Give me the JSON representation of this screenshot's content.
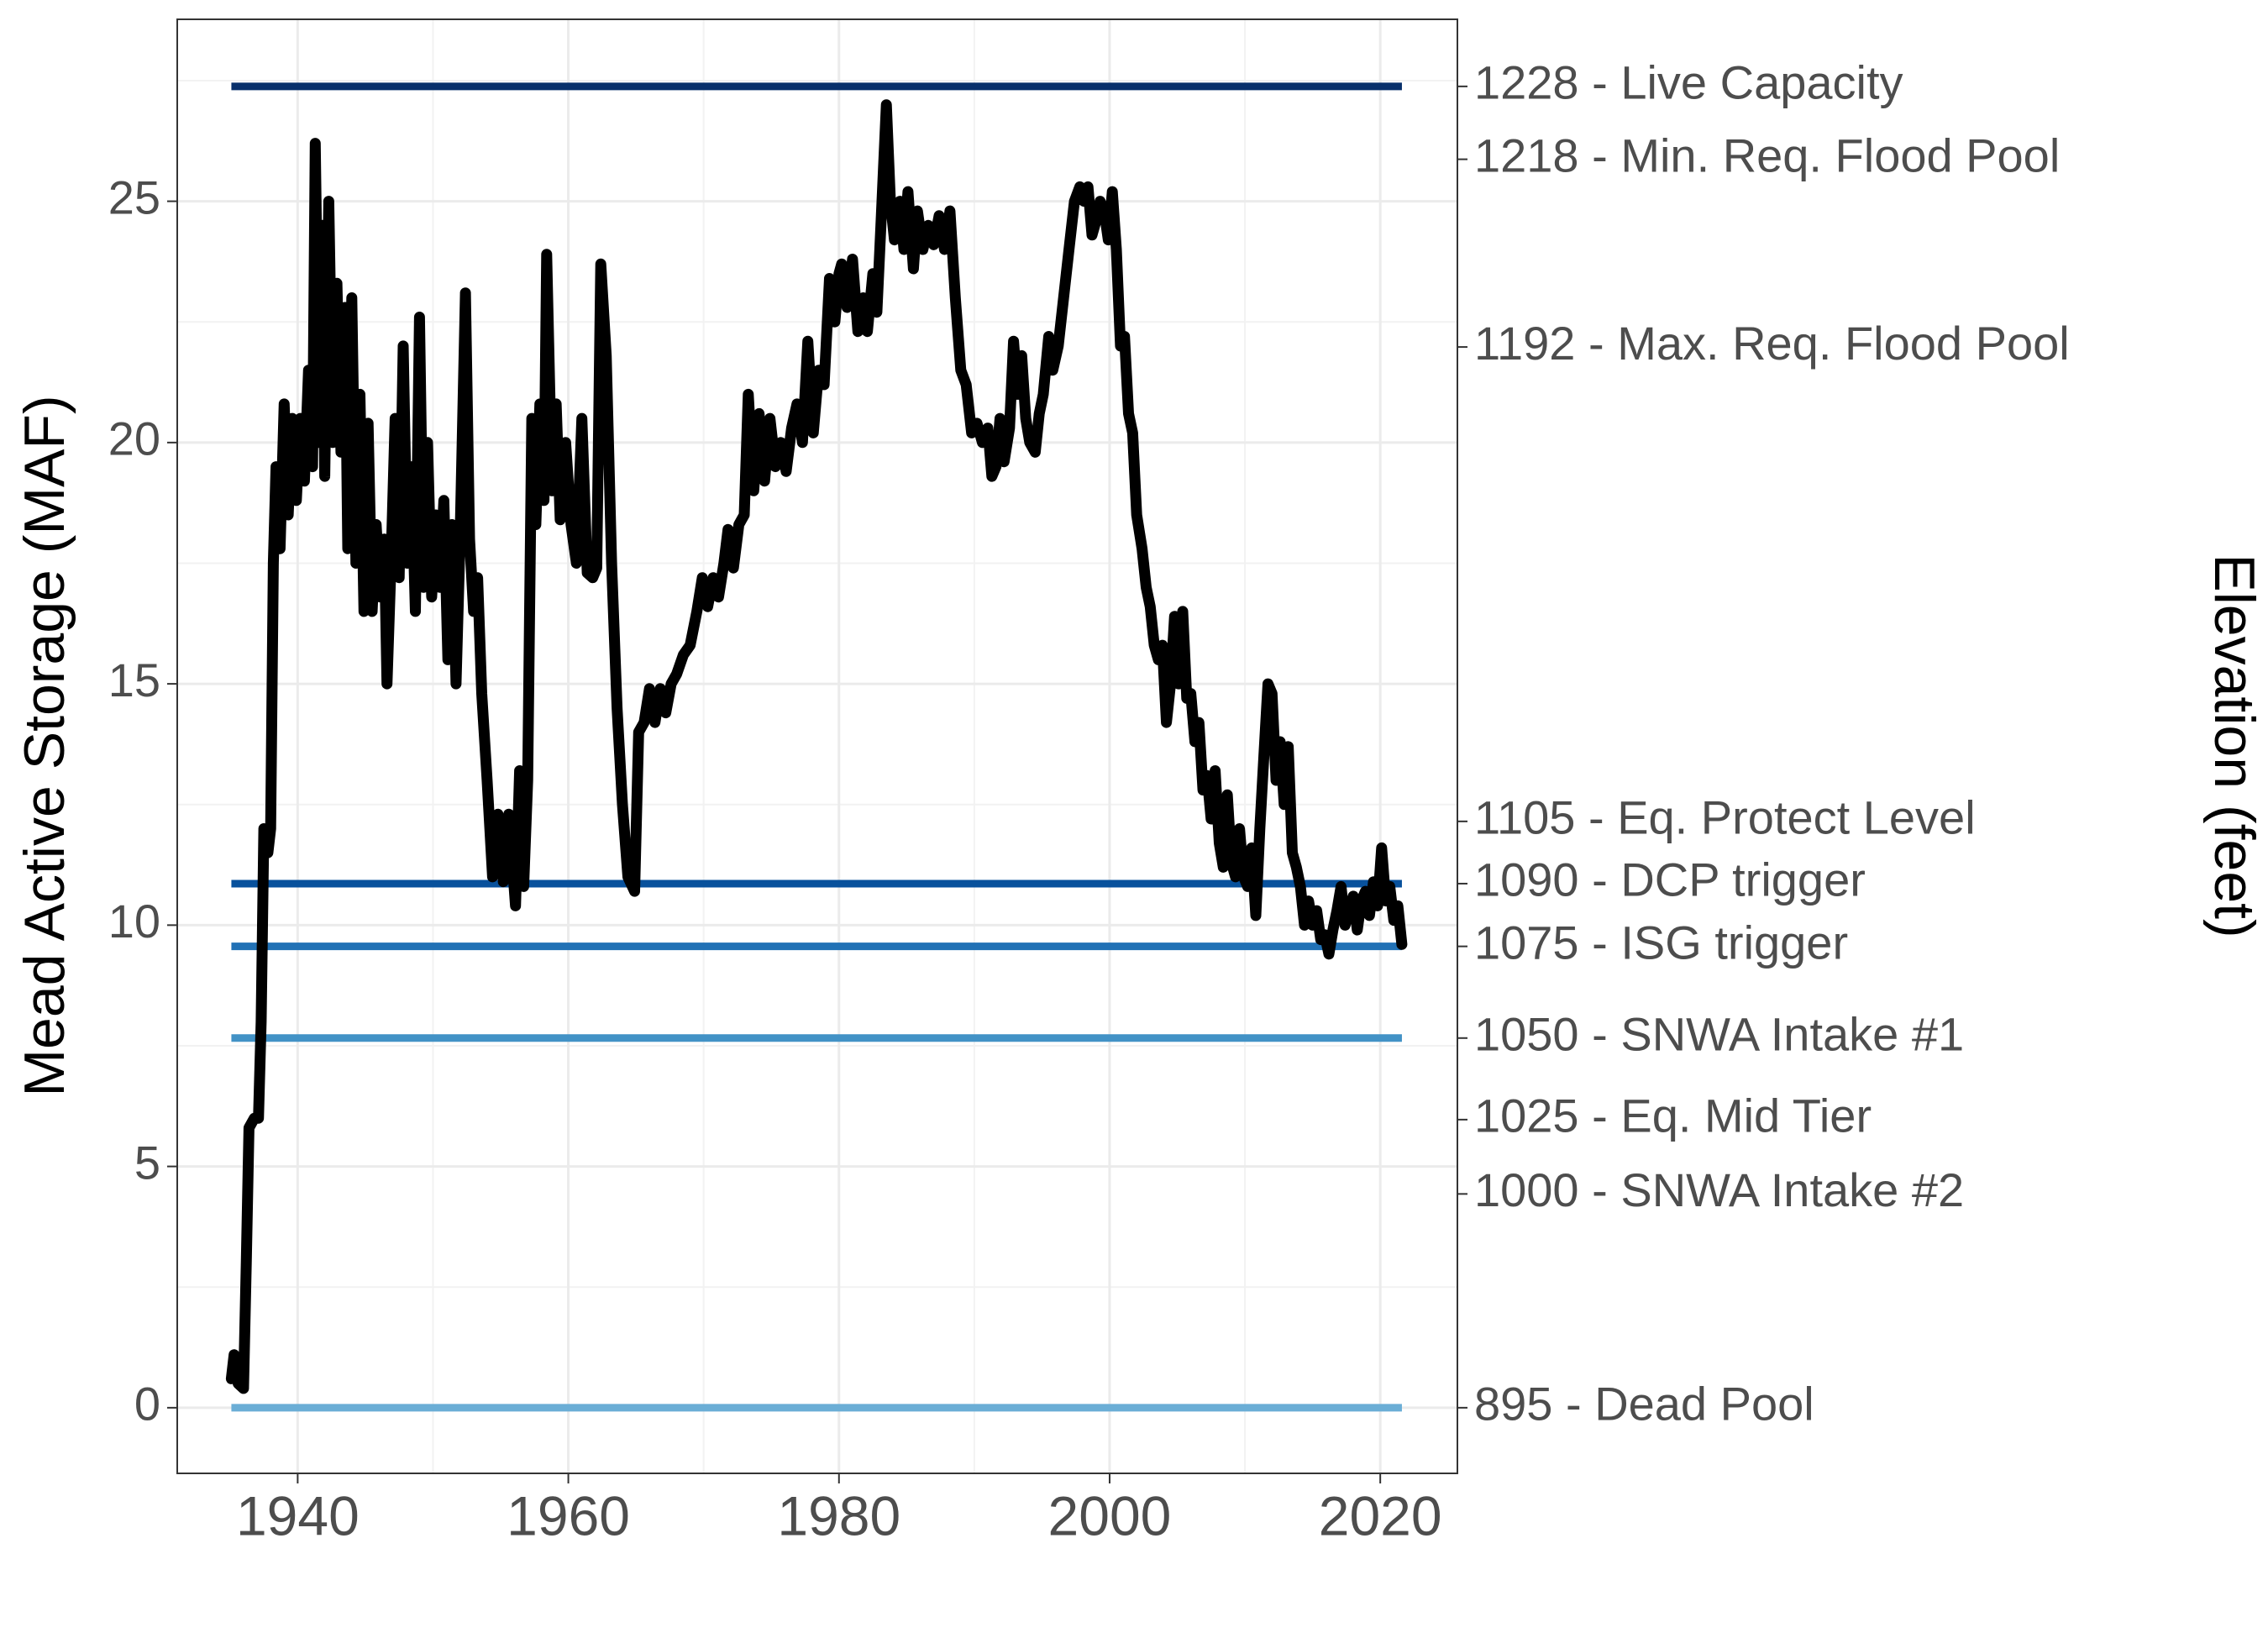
{
  "chart_data": {
    "type": "line",
    "y_label": "Mead Active Storage (MAF)",
    "y2_label": "Elevation (feet)",
    "color": "#000000",
    "grid": true,
    "xlim": [
      1931.1,
      2025.7
    ],
    "ylim": [
      -1.36,
      28.77
    ],
    "y2lim": [
      -1.36,
      28.77
    ],
    "xticks": [
      1940,
      1960,
      1980,
      2000,
      2020
    ],
    "x_minor_ticks": [
      1950,
      1970,
      1990,
      2010
    ],
    "yticks": [
      0,
      5,
      10,
      15,
      20,
      25
    ],
    "y_minor_ticks": [
      2.5,
      7.5,
      12.5,
      17.5,
      22.5,
      27.5
    ],
    "y2ticks": [
      {
        "value": 27.38,
        "label": "1228 - Live Capacity"
      },
      {
        "value": 25.87,
        "label": "1218 - Min. Req. Flood Pool"
      },
      {
        "value": 21.98,
        "label": "1192 - Max. Req. Flood Pool"
      },
      {
        "value": 12.15,
        "label": "1105 - Eq. Protect Level"
      },
      {
        "value": 10.86,
        "label": "1090 - DCP trigger"
      },
      {
        "value": 9.56,
        "label": "1075 - ISG trigger"
      },
      {
        "value": 7.66,
        "label": "1050 - SNWA Intake #1"
      },
      {
        "value": 5.97,
        "label": "1025 - Eq. Mid Tier"
      },
      {
        "value": 4.43,
        "label": "1000 - SNWA Intake #2"
      },
      {
        "value": 0,
        "label": "895 - Dead Pool"
      }
    ],
    "hlines": [
      {
        "value": 27.38,
        "color": "#08306b"
      },
      {
        "value": 10.86,
        "color": "#08519c"
      },
      {
        "value": 9.56,
        "color": "#2171b5"
      },
      {
        "value": 7.66,
        "color": "#4292c6"
      },
      {
        "value": 0,
        "color": "#6baed6"
      }
    ],
    "hline_range": [
      1935.1,
      2021.6
    ],
    "x": [
      1935.1,
      1935.3,
      1935.6,
      1936.0,
      1936.2,
      1936.4,
      1936.8,
      1937.1,
      1937.3,
      1937.5,
      1937.8,
      1938.0,
      1938.2,
      1938.4,
      1938.7,
      1939.0,
      1939.3,
      1939.6,
      1939.9,
      1940.2,
      1940.5,
      1940.8,
      1941.1,
      1941.3,
      1941.6,
      1941.8,
      1942.0,
      1942.3,
      1942.6,
      1942.9,
      1943.2,
      1943.5,
      1943.7,
      1944.0,
      1944.3,
      1944.6,
      1944.9,
      1945.2,
      1945.5,
      1945.8,
      1946.1,
      1946.4,
      1946.6,
      1946.9,
      1947.2,
      1947.5,
      1947.8,
      1948.1,
      1948.4,
      1948.7,
      1949.0,
      1949.3,
      1949.6,
      1949.9,
      1950.2,
      1950.5,
      1950.8,
      1951.1,
      1951.4,
      1951.7,
      1952.0,
      1952.4,
      1952.7,
      1953.0,
      1953.3,
      1953.6,
      1954.0,
      1954.4,
      1954.8,
      1955.2,
      1955.6,
      1956.1,
      1956.4,
      1956.7,
      1957.0,
      1957.3,
      1957.6,
      1957.9,
      1958.2,
      1958.4,
      1958.8,
      1959.1,
      1959.4,
      1959.8,
      1960.2,
      1960.6,
      1961.0,
      1961.4,
      1961.8,
      1962.1,
      1962.4,
      1962.8,
      1963.2,
      1963.6,
      1964.0,
      1964.4,
      1964.9,
      1965.2,
      1965.6,
      1966.0,
      1966.4,
      1966.8,
      1967.2,
      1967.6,
      1968.0,
      1968.5,
      1969.0,
      1969.5,
      1969.9,
      1970.3,
      1970.7,
      1971.1,
      1971.5,
      1971.8,
      1972.2,
      1972.6,
      1973.0,
      1973.3,
      1973.7,
      1974.1,
      1974.5,
      1974.9,
      1975.3,
      1975.7,
      1976.1,
      1976.5,
      1976.9,
      1977.3,
      1977.7,
      1978.1,
      1978.5,
      1978.9,
      1979.3,
      1979.7,
      1980.0,
      1980.2,
      1980.6,
      1981.0,
      1981.4,
      1981.8,
      1982.1,
      1982.5,
      1982.8,
      1983.1,
      1983.5,
      1983.8,
      1984.1,
      1984.5,
      1984.8,
      1985.1,
      1985.5,
      1985.8,
      1986.2,
      1986.6,
      1987.0,
      1987.4,
      1987.8,
      1988.2,
      1988.6,
      1989.0,
      1989.4,
      1989.8,
      1990.2,
      1990.6,
      1991.0,
      1991.3,
      1991.6,
      1991.9,
      1992.2,
      1992.6,
      1992.9,
      1993.2,
      1993.5,
      1993.8,
      1994.1,
      1994.5,
      1994.8,
      1995.1,
      1995.5,
      1995.8,
      1996.2,
      1996.6,
      1997.0,
      1997.4,
      1997.8,
      1998.1,
      1998.4,
      1998.7,
      1999.0,
      1999.3,
      1999.6,
      1999.9,
      2000.2,
      2000.5,
      2000.8,
      2001.1,
      2001.4,
      2001.7,
      2002.0,
      2002.4,
      2002.7,
      2003.0,
      2003.3,
      2003.6,
      2003.9,
      2004.2,
      2004.5,
      2004.8,
      2005.1,
      2005.4,
      2005.7,
      2006.0,
      2006.3,
      2006.6,
      2006.9,
      2007.2,
      2007.5,
      2007.8,
      2008.1,
      2008.4,
      2008.7,
      2009.0,
      2009.3,
      2009.6,
      2009.9,
      2010.2,
      2010.5,
      2010.8,
      2011.1,
      2011.4,
      2011.7,
      2012.0,
      2012.3,
      2012.6,
      2012.9,
      2013.2,
      2013.5,
      2013.8,
      2014.1,
      2014.4,
      2014.7,
      2015.0,
      2015.3,
      2015.6,
      2015.9,
      2016.2,
      2016.5,
      2016.8,
      2017.1,
      2017.4,
      2017.7,
      2018.0,
      2018.3,
      2018.6,
      2018.9,
      2019.2,
      2019.5,
      2019.8,
      2020.1,
      2020.4,
      2020.7,
      2021.0,
      2021.3,
      2021.6
    ],
    "values": [
      0.6,
      1.1,
      0.5,
      0.4,
      3.0,
      5.8,
      6.0,
      6.0,
      8.0,
      12.0,
      11.5,
      12.0,
      17.5,
      19.5,
      17.8,
      20.8,
      18.5,
      20.5,
      18.8,
      20.5,
      19.2,
      21.5,
      19.5,
      26.2,
      20.0,
      24.5,
      19.3,
      25.0,
      20.0,
      23.3,
      19.8,
      22.8,
      17.8,
      23.0,
      17.5,
      21.0,
      16.5,
      20.4,
      16.5,
      18.3,
      16.8,
      18.0,
      15.0,
      17.5,
      20.5,
      17.2,
      22.0,
      17.5,
      19.5,
      16.5,
      22.6,
      17.0,
      20.0,
      16.8,
      18.5,
      17.0,
      18.8,
      15.5,
      18.3,
      15.0,
      18.0,
      23.1,
      18.0,
      16.5,
      17.2,
      14.8,
      13.0,
      11.0,
      12.3,
      10.9,
      12.3,
      10.4,
      13.2,
      10.8,
      13.0,
      20.5,
      18.3,
      20.8,
      18.8,
      23.9,
      19.0,
      20.8,
      18.4,
      20.0,
      18.3,
      17.5,
      20.5,
      17.3,
      17.2,
      17.4,
      23.7,
      21.8,
      17.5,
      14.5,
      12.5,
      11.0,
      10.7,
      14.0,
      14.2,
      14.9,
      14.2,
      14.9,
      14.4,
      15.0,
      15.2,
      15.6,
      15.8,
      16.5,
      17.2,
      16.6,
      17.2,
      16.8,
      17.5,
      18.2,
      17.4,
      18.3,
      18.5,
      21.0,
      19.0,
      20.6,
      19.2,
      20.5,
      19.5,
      20.0,
      19.4,
      20.3,
      20.8,
      20.0,
      22.1,
      20.2,
      21.5,
      21.2,
      23.4,
      22.5,
      23.5,
      23.7,
      22.8,
      23.8,
      22.3,
      23.0,
      22.3,
      23.5,
      22.7,
      24.5,
      27.0,
      25.0,
      24.2,
      25.0,
      24.0,
      25.2,
      23.6,
      24.8,
      24.0,
      24.5,
      24.1,
      24.7,
      24.0,
      24.8,
      23.0,
      21.5,
      21.2,
      20.2,
      20.4,
      20.0,
      20.3,
      19.3,
      19.5,
      20.5,
      19.6,
      20.3,
      22.1,
      21.0,
      21.8,
      20.5,
      20.0,
      19.8,
      20.6,
      21.0,
      22.2,
      21.5,
      22.0,
      23.0,
      24.0,
      25.0,
      25.3,
      25.0,
      25.3,
      24.3,
      24.6,
      25.0,
      24.8,
      24.2,
      25.2,
      24.0,
      22.0,
      22.2,
      20.6,
      20.2,
      18.5,
      17.8,
      17.0,
      16.6,
      15.8,
      15.5,
      15.8,
      14.2,
      15.0,
      16.4,
      15.0,
      16.5,
      14.7,
      14.8,
      13.8,
      14.2,
      12.8,
      13.1,
      12.2,
      13.2,
      11.7,
      11.2,
      12.7,
      11.3,
      11.0,
      12.0,
      11.0,
      10.8,
      11.6,
      10.2,
      12.0,
      13.5,
      15.0,
      14.8,
      13.0,
      13.8,
      12.5,
      13.7,
      11.5,
      11.2,
      10.8,
      10.0,
      10.5,
      10.0,
      10.3,
      9.7,
      9.8,
      9.4,
      9.9,
      10.3,
      10.8,
      10.0,
      10.3,
      10.6,
      9.9,
      10.5,
      10.7,
      10.2,
      10.9,
      10.4,
      11.6,
      10.5,
      10.8,
      10.1,
      10.4,
      9.6
    ]
  }
}
